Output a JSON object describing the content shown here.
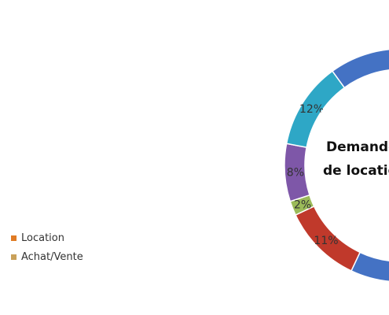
{
  "chart_data": {
    "type": "pie",
    "variant": "donut",
    "center_title_lines": [
      "Demande",
      "de locatio"
    ],
    "slices": [
      {
        "label": "",
        "value": 57,
        "color": "#4472C4"
      },
      {
        "label": "11%",
        "value": 11,
        "color": "#C0392B"
      },
      {
        "label": "2%",
        "value": 2,
        "color": "#9BBB59"
      },
      {
        "label": "8%",
        "value": 8,
        "color": "#7E57A8"
      },
      {
        "label": "12%",
        "value": 12,
        "color": "#2EA7C6"
      },
      {
        "label": "",
        "value": 10,
        "color": "#4472C4"
      }
    ],
    "legend": [
      {
        "label": "Location",
        "color": "#E07B24"
      },
      {
        "label": "Achat/Vente",
        "color": "#C9A15A"
      }
    ],
    "legend_position": "left"
  }
}
